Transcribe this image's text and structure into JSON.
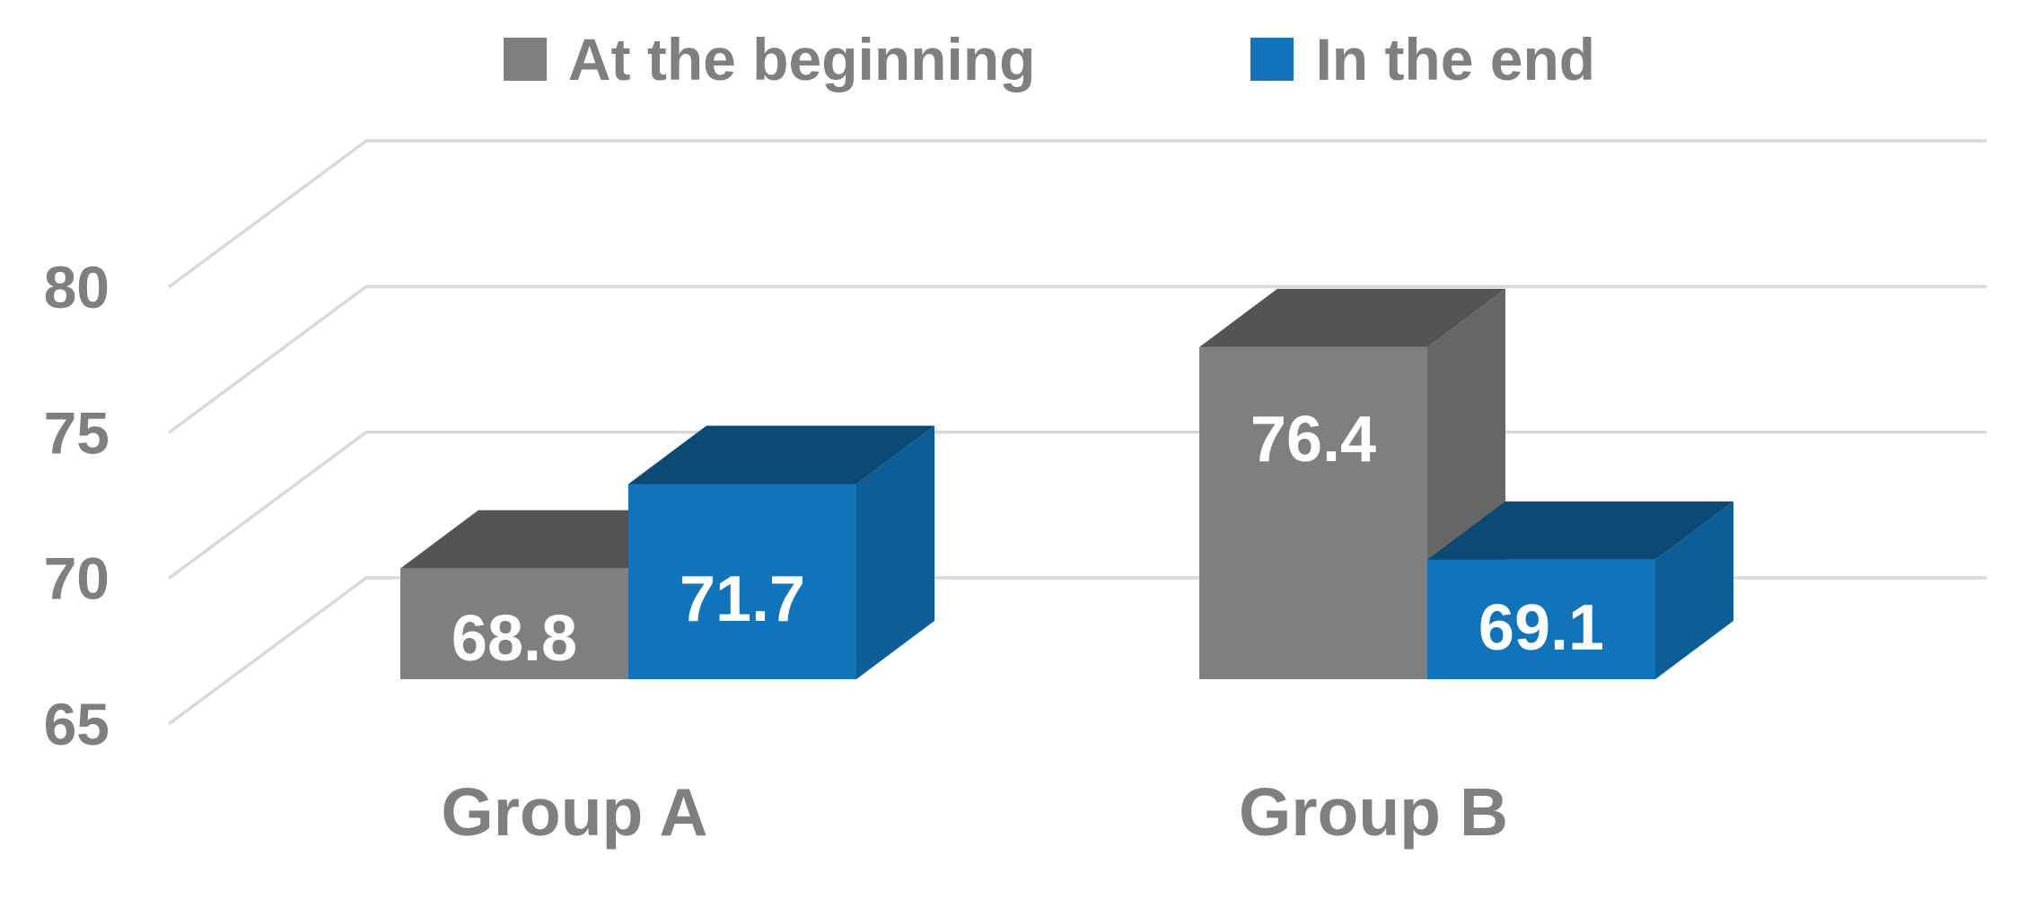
{
  "chart_data": {
    "type": "bar",
    "style": "3d-clustered-column",
    "title": "",
    "categories": [
      "Group A",
      "Group B"
    ],
    "series": [
      {
        "name": "At the beginning",
        "values": [
          68.8,
          76.4
        ],
        "color": "#7F7F7F",
        "top_color": "#545454",
        "side_color": "#666666"
      },
      {
        "name": "In the end",
        "values": [
          71.7,
          69.1
        ],
        "color": "#1173B9",
        "top_color": "#0A4A74",
        "side_color": "#0D5E97"
      }
    ],
    "y_ticks": [
      65,
      70,
      75,
      80
    ],
    "y_axis_range": [
      65,
      80
    ],
    "legend_position": "top",
    "gridlines": true,
    "value_labels_shown": true,
    "value_label_color": "#FFFFFF",
    "axis_text_color": "#7F7F7F",
    "gridline_color": "#D9D9D9",
    "background_color": "#FFFFFF"
  }
}
